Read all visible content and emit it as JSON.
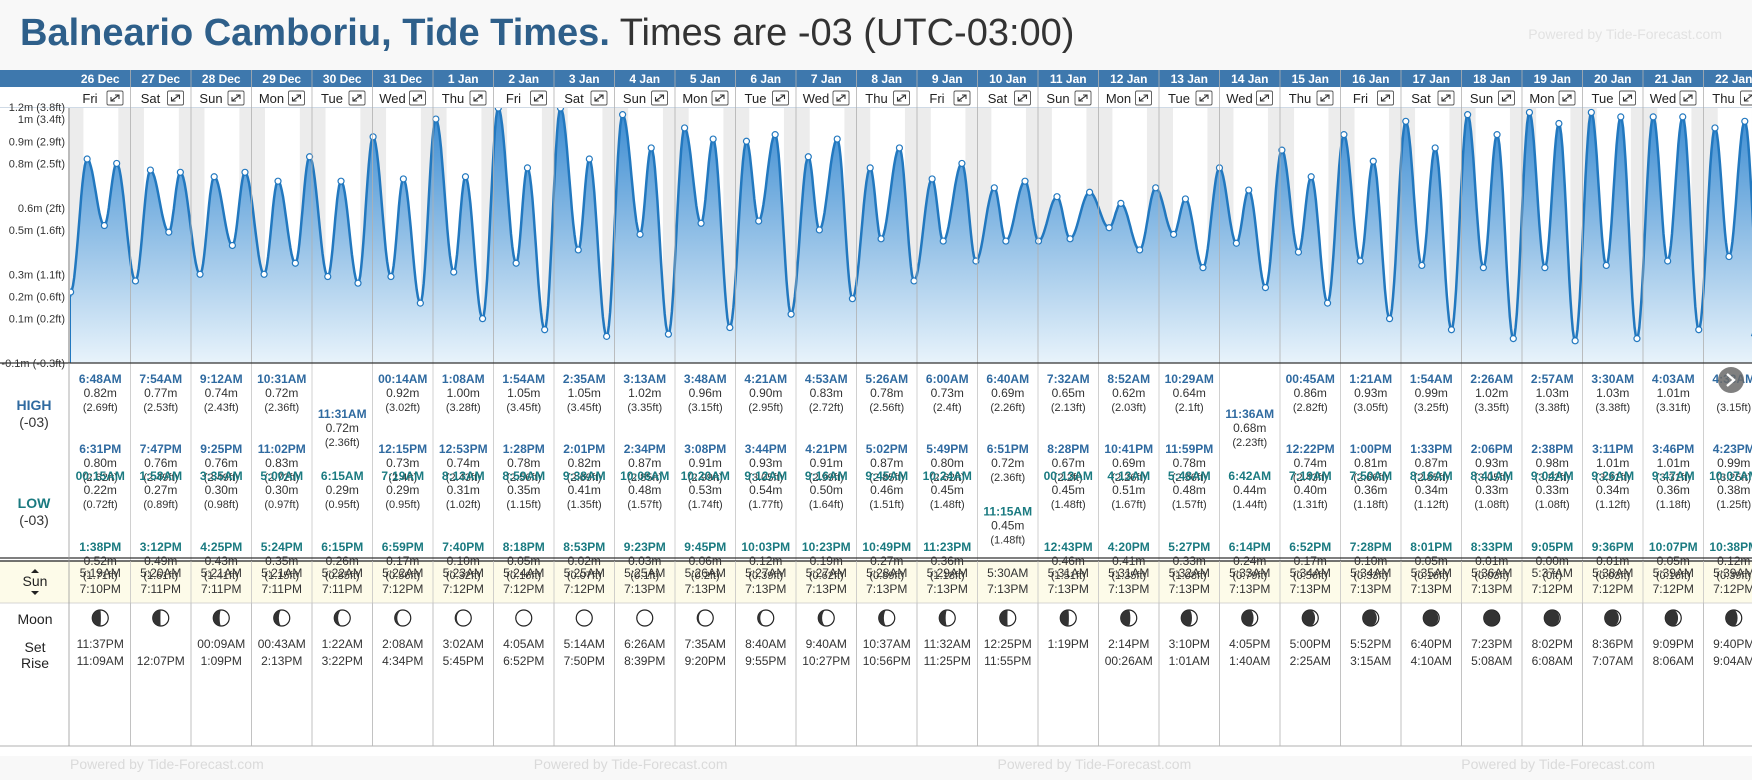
{
  "header": {
    "location": "Balneario Camboriu, Tide Times.",
    "timezone_note": "Times are -03 (UTC-03:00)",
    "powered_by": "Powered by Tide-Forecast.com"
  },
  "footer": {
    "powered_by": "Powered by Tide-Forecast.com"
  },
  "row_labels": {
    "high": "HIGH",
    "high_tz": "(-03)",
    "low": "LOW",
    "low_tz": "(-03)",
    "sun": "Sun",
    "moon": "Moon",
    "set": "Set",
    "rise": "Rise"
  },
  "colors": {
    "header_bar": "#3e78ad",
    "tide_line": "#2278bf",
    "tide_fill_top": "#3a8bd1",
    "tide_fill_bottom": "#e8f3fb",
    "high_time": "#2f6aa0",
    "low_time": "#1a7a80",
    "sun_row": "#fdfbe9"
  },
  "chart_data": {
    "type": "area",
    "title": "Balneario Camboriu, Tide Times.",
    "ylim": [
      -0.1,
      1.05
    ],
    "y_ticks": [
      {
        "v": 1.0,
        "label": "1m (3.4ft)"
      },
      {
        "v": 0.9,
        "label": "0.9m (2.9ft)"
      },
      {
        "v": 0.8,
        "label": "0.8m (2.5ft)"
      },
      {
        "v": 0.6,
        "label": "0.6m (2ft)"
      },
      {
        "v": 0.5,
        "label": "0.5m (1.6ft)"
      },
      {
        "v": 0.3,
        "label": "0.3m (1.1ft)"
      },
      {
        "v": 0.2,
        "label": "0.2m (0.6ft)"
      },
      {
        "v": 0.1,
        "label": "0.1m (0.2ft)"
      },
      {
        "v": -0.1,
        "label": "-0.1m (-0.3ft)"
      }
    ],
    "y_partial_label": "1.2m (3.8ft)",
    "start_value": 0.2,
    "days": [
      {
        "date": "26 Dec",
        "dow": "Fri",
        "high": [
          [
            "6:48AM",
            "0.82m",
            "(2.69ft)"
          ],
          [
            "6:31PM",
            "0.80m",
            "(2.62ft)"
          ]
        ],
        "low": [
          [
            "00:15AM",
            "0.22m",
            "(0.72ft)"
          ],
          [
            "1:38PM",
            "0.52m",
            "(1.71ft)"
          ]
        ],
        "sunrise": "5:19AM",
        "sunset": "7:10PM",
        "moonset": "11:37PM",
        "moonrise": "11:09AM",
        "moon_phase": 0.46
      },
      {
        "date": "27 Dec",
        "dow": "Sat",
        "high": [
          [
            "7:54AM",
            "0.77m",
            "(2.53ft)"
          ],
          [
            "7:47PM",
            "0.76m",
            "(2.49ft)"
          ]
        ],
        "low": [
          [
            "1:58AM",
            "0.27m",
            "(0.89ft)"
          ],
          [
            "3:12PM",
            "0.49m",
            "(1.61ft)"
          ]
        ],
        "sunrise": "5:20AM",
        "sunset": "7:11PM",
        "moonset": "",
        "moonrise": "12:07PM",
        "moon_phase": 0.52
      },
      {
        "date": "28 Dec",
        "dow": "Sun",
        "high": [
          [
            "9:12AM",
            "0.74m",
            "(2.43ft)"
          ],
          [
            "9:25PM",
            "0.76m",
            "(2.49ft)"
          ]
        ],
        "low": [
          [
            "3:35AM",
            "0.30m",
            "(0.98ft)"
          ],
          [
            "4:25PM",
            "0.43m",
            "(1.41ft)"
          ]
        ],
        "sunrise": "5:21AM",
        "sunset": "7:11PM",
        "moonset": "00:09AM",
        "moonrise": "1:09PM",
        "moon_phase": 0.6
      },
      {
        "date": "29 Dec",
        "dow": "Mon",
        "high": [
          [
            "10:31AM",
            "0.72m",
            "(2.36ft)"
          ],
          [
            "11:02PM",
            "0.83m",
            "(2.72ft)"
          ]
        ],
        "low": [
          [
            "5:00AM",
            "0.30m",
            "(0.97ft)"
          ],
          [
            "5:24PM",
            "0.35m",
            "(1.15ft)"
          ]
        ],
        "sunrise": "5:21AM",
        "sunset": "7:11PM",
        "moonset": "00:43AM",
        "moonrise": "2:13PM",
        "moon_phase": 0.68
      },
      {
        "date": "30 Dec",
        "dow": "Tue",
        "high": [
          [
            "11:31AM",
            "0.72m",
            "(2.36ft)"
          ]
        ],
        "low": [
          [
            "6:15AM",
            "0.29m",
            "(0.95ft)"
          ],
          [
            "6:15PM",
            "0.26m",
            "(0.85ft)"
          ]
        ],
        "sunrise": "5:22AM",
        "sunset": "7:11PM",
        "moonset": "1:22AM",
        "moonrise": "3:22PM",
        "moon_phase": 0.76
      },
      {
        "date": "31 Dec",
        "dow": "Wed",
        "high": [
          [
            "00:14AM",
            "0.92m",
            "(3.02ft)"
          ],
          [
            "12:15PM",
            "0.73m",
            "(2.4ft)"
          ]
        ],
        "low": [
          [
            "7:19AM",
            "0.29m",
            "(0.95ft)"
          ],
          [
            "6:59PM",
            "0.17m",
            "(0.56ft)"
          ]
        ],
        "sunrise": "5:22AM",
        "sunset": "7:12PM",
        "moonset": "2:08AM",
        "moonrise": "4:34PM",
        "moon_phase": 0.84
      },
      {
        "date": "1 Jan",
        "dow": "Thu",
        "high": [
          [
            "1:08AM",
            "1.00m",
            "(3.28ft)"
          ],
          [
            "12:53PM",
            "0.74m",
            "(2.43ft)"
          ]
        ],
        "low": [
          [
            "8:13AM",
            "0.31m",
            "(1.02ft)"
          ],
          [
            "7:40PM",
            "0.10m",
            "(0.32ft)"
          ]
        ],
        "sunrise": "5:23AM",
        "sunset": "7:12PM",
        "moonset": "3:02AM",
        "moonrise": "5:45PM",
        "moon_phase": 0.9
      },
      {
        "date": "2 Jan",
        "dow": "Fri",
        "high": [
          [
            "1:54AM",
            "1.05m",
            "(3.45ft)"
          ],
          [
            "1:28PM",
            "0.78m",
            "(2.56ft)"
          ]
        ],
        "low": [
          [
            "8:59AM",
            "0.35m",
            "(1.15ft)"
          ],
          [
            "8:18PM",
            "0.05m",
            "(0.16ft)"
          ]
        ],
        "sunrise": "5:24AM",
        "sunset": "7:12PM",
        "moonset": "4:05AM",
        "moonrise": "6:52PM",
        "moon_phase": 0.96
      },
      {
        "date": "3 Jan",
        "dow": "Sat",
        "high": [
          [
            "2:35AM",
            "1.05m",
            "(3.45ft)"
          ],
          [
            "2:01PM",
            "0.82m",
            "(2.69ft)"
          ]
        ],
        "low": [
          [
            "9:38AM",
            "0.41m",
            "(1.35ft)"
          ],
          [
            "8:53PM",
            "0.02m",
            "(0.07ft)"
          ]
        ],
        "sunrise": "5:25AM",
        "sunset": "7:12PM",
        "moonset": "5:14AM",
        "moonrise": "7:50PM",
        "moon_phase": 1.0
      },
      {
        "date": "4 Jan",
        "dow": "Sun",
        "high": [
          [
            "3:13AM",
            "1.02m",
            "(3.35ft)"
          ],
          [
            "2:34PM",
            "0.87m",
            "(2.85ft)"
          ]
        ],
        "low": [
          [
            "10:08AM",
            "0.48m",
            "(1.57ft)"
          ],
          [
            "9:23PM",
            "0.03m",
            "(0.1ft)"
          ]
        ],
        "sunrise": "5:25AM",
        "sunset": "7:13PM",
        "moonset": "6:26AM",
        "moonrise": "8:39PM",
        "moon_phase": 0.96
      },
      {
        "date": "5 Jan",
        "dow": "Mon",
        "high": [
          [
            "3:48AM",
            "0.96m",
            "(3.15ft)"
          ],
          [
            "3:08PM",
            "0.91m",
            "(2.99ft)"
          ]
        ],
        "low": [
          [
            "10:20AM",
            "0.53m",
            "(1.74ft)"
          ],
          [
            "9:45PM",
            "0.06m",
            "(0.2ft)"
          ]
        ],
        "sunrise": "5:26AM",
        "sunset": "7:13PM",
        "moonset": "7:35AM",
        "moonrise": "9:20PM",
        "moon_phase": 0.9
      },
      {
        "date": "6 Jan",
        "dow": "Tue",
        "high": [
          [
            "4:21AM",
            "0.90m",
            "(2.95ft)"
          ],
          [
            "3:44PM",
            "0.93m",
            "(3.05ft)"
          ]
        ],
        "low": [
          [
            "9:12AM",
            "0.54m",
            "(1.77ft)"
          ],
          [
            "10:03PM",
            "0.12m",
            "(0.39ft)"
          ]
        ],
        "sunrise": "5:27AM",
        "sunset": "7:13PM",
        "moonset": "8:40AM",
        "moonrise": "9:55PM",
        "moon_phase": 0.84
      },
      {
        "date": "7 Jan",
        "dow": "Wed",
        "high": [
          [
            "4:53AM",
            "0.83m",
            "(2.72ft)"
          ],
          [
            "4:21PM",
            "0.91m",
            "(2.99ft)"
          ]
        ],
        "low": [
          [
            "9:16AM",
            "0.50m",
            "(1.64ft)"
          ],
          [
            "10:23PM",
            "0.19m",
            "(0.62ft)"
          ]
        ],
        "sunrise": "5:27AM",
        "sunset": "7:13PM",
        "moonset": "9:40AM",
        "moonrise": "10:27PM",
        "moon_phase": 0.76
      },
      {
        "date": "8 Jan",
        "dow": "Thu",
        "high": [
          [
            "5:26AM",
            "0.78m",
            "(2.56ft)"
          ],
          [
            "5:02PM",
            "0.87m",
            "(2.85ft)"
          ]
        ],
        "low": [
          [
            "9:45AM",
            "0.46m",
            "(1.51ft)"
          ],
          [
            "10:49PM",
            "0.27m",
            "(0.89ft)"
          ]
        ],
        "sunrise": "5:28AM",
        "sunset": "7:13PM",
        "moonset": "10:37AM",
        "moonrise": "10:56PM",
        "moon_phase": 0.68
      },
      {
        "date": "9 Jan",
        "dow": "Fri",
        "high": [
          [
            "6:00AM",
            "0.73m",
            "(2.4ft)"
          ],
          [
            "5:49PM",
            "0.80m",
            "(2.62ft)"
          ]
        ],
        "low": [
          [
            "10:24AM",
            "0.45m",
            "(1.48ft)"
          ],
          [
            "11:23PM",
            "0.36m",
            "(1.18ft)"
          ]
        ],
        "sunrise": "5:29AM",
        "sunset": "7:13PM",
        "moonset": "11:32AM",
        "moonrise": "11:25PM",
        "moon_phase": 0.6
      },
      {
        "date": "10 Jan",
        "dow": "Sat",
        "high": [
          [
            "6:40AM",
            "0.69m",
            "(2.26ft)"
          ],
          [
            "6:51PM",
            "0.72m",
            "(2.36ft)"
          ]
        ],
        "low": [
          [
            "11:15AM",
            "0.45m",
            "(1.48ft)"
          ]
        ],
        "sunrise": "5:30AM",
        "sunset": "7:13PM",
        "moonset": "12:25PM",
        "moonrise": "11:55PM",
        "moon_phase": 0.52
      },
      {
        "date": "11 Jan",
        "dow": "Sun",
        "high": [
          [
            "7:32AM",
            "0.65m",
            "(2.13ft)"
          ],
          [
            "8:28PM",
            "0.67m",
            "(2.2ft)"
          ]
        ],
        "low": [
          [
            "00:13AM",
            "0.45m",
            "(1.48ft)"
          ],
          [
            "12:43PM",
            "0.46m",
            "(1.51ft)"
          ]
        ],
        "sunrise": "5:31AM",
        "sunset": "7:13PM",
        "moonset": "1:19PM",
        "moonrise": "",
        "moon_phase": 0.46
      },
      {
        "date": "12 Jan",
        "dow": "Mon",
        "high": [
          [
            "8:52AM",
            "0.62m",
            "(2.03ft)"
          ],
          [
            "10:41PM",
            "0.69m",
            "(2.26ft)"
          ]
        ],
        "low": [
          [
            "4:13AM",
            "0.51m",
            "(1.67ft)"
          ],
          [
            "4:20PM",
            "0.41m",
            "(1.35ft)"
          ]
        ],
        "sunrise": "5:31AM",
        "sunset": "7:13PM",
        "moonset": "2:14PM",
        "moonrise": "00:26AM",
        "moon_phase": 0.4
      },
      {
        "date": "13 Jan",
        "dow": "Tue",
        "high": [
          [
            "10:29AM",
            "0.64m",
            "(2.1ft)"
          ],
          [
            "11:59PM",
            "0.78m",
            "(2.56ft)"
          ]
        ],
        "low": [
          [
            "5:48AM",
            "0.48m",
            "(1.57ft)"
          ],
          [
            "5:27PM",
            "0.33m",
            "(1.08ft)"
          ]
        ],
        "sunrise": "5:32AM",
        "sunset": "7:13PM",
        "moonset": "3:10PM",
        "moonrise": "1:01AM",
        "moon_phase": 0.33
      },
      {
        "date": "14 Jan",
        "dow": "Wed",
        "high": [
          [
            "11:36AM",
            "0.68m",
            "(2.23ft)"
          ]
        ],
        "low": [
          [
            "6:42AM",
            "0.44m",
            "(1.44ft)"
          ],
          [
            "6:14PM",
            "0.24m",
            "(0.79ft)"
          ]
        ],
        "sunrise": "5:33AM",
        "sunset": "7:13PM",
        "moonset": "4:05PM",
        "moonrise": "1:40AM",
        "moon_phase": 0.26
      },
      {
        "date": "15 Jan",
        "dow": "Thu",
        "high": [
          [
            "00:45AM",
            "0.86m",
            "(2.82ft)"
          ],
          [
            "12:22PM",
            "0.74m",
            "(2.43ft)"
          ]
        ],
        "low": [
          [
            "7:19AM",
            "0.40m",
            "(1.31ft)"
          ],
          [
            "6:52PM",
            "0.17m",
            "(0.56ft)"
          ]
        ],
        "sunrise": "5:34AM",
        "sunset": "7:13PM",
        "moonset": "5:00PM",
        "moonrise": "2:25AM",
        "moon_phase": 0.2
      },
      {
        "date": "16 Jan",
        "dow": "Fri",
        "high": [
          [
            "1:21AM",
            "0.93m",
            "(3.05ft)"
          ],
          [
            "1:00PM",
            "0.81m",
            "(2.66ft)"
          ]
        ],
        "low": [
          [
            "7:50AM",
            "0.36m",
            "(1.18ft)"
          ],
          [
            "7:28PM",
            "0.10m",
            "(0.33ft)"
          ]
        ],
        "sunrise": "5:34AM",
        "sunset": "7:13PM",
        "moonset": "5:52PM",
        "moonrise": "3:15AM",
        "moon_phase": 0.12
      },
      {
        "date": "17 Jan",
        "dow": "Sat",
        "high": [
          [
            "1:54AM",
            "0.99m",
            "(3.25ft)"
          ],
          [
            "1:33PM",
            "0.87m",
            "(2.85ft)"
          ]
        ],
        "low": [
          [
            "8:16AM",
            "0.34m",
            "(1.12ft)"
          ],
          [
            "8:01PM",
            "0.05m",
            "(0.16ft)"
          ]
        ],
        "sunrise": "5:35AM",
        "sunset": "7:13PM",
        "moonset": "6:40PM",
        "moonrise": "4:10AM",
        "moon_phase": 0.06
      },
      {
        "date": "18 Jan",
        "dow": "Sun",
        "high": [
          [
            "2:26AM",
            "1.02m",
            "(3.35ft)"
          ],
          [
            "2:06PM",
            "0.93m",
            "(3.05ft)"
          ]
        ],
        "low": [
          [
            "8:41AM",
            "0.33m",
            "(1.08ft)"
          ],
          [
            "8:33PM",
            "0.01m",
            "(0.03ft)"
          ]
        ],
        "sunrise": "5:36AM",
        "sunset": "7:13PM",
        "moonset": "7:23PM",
        "moonrise": "5:08AM",
        "moon_phase": 0.02
      },
      {
        "date": "19 Jan",
        "dow": "Mon",
        "high": [
          [
            "2:57AM",
            "1.03m",
            "(3.38ft)"
          ],
          [
            "2:38PM",
            "0.98m",
            "(3.22ft)"
          ]
        ],
        "low": [
          [
            "9:04AM",
            "0.33m",
            "(1.08ft)"
          ],
          [
            "9:05PM",
            "0.00m",
            "(0ft)"
          ]
        ],
        "sunrise": "5:37AM",
        "sunset": "7:12PM",
        "moonset": "8:02PM",
        "moonrise": "6:08AM",
        "moon_phase": 0.06
      },
      {
        "date": "20 Jan",
        "dow": "Tue",
        "high": [
          [
            "3:30AM",
            "1.03m",
            "(3.38ft)"
          ],
          [
            "3:11PM",
            "1.01m",
            "(3.31ft)"
          ]
        ],
        "low": [
          [
            "9:26AM",
            "0.34m",
            "(1.12ft)"
          ],
          [
            "9:36PM",
            "0.01m",
            "(0.03ft)"
          ]
        ],
        "sunrise": "5:38AM",
        "sunset": "7:12PM",
        "moonset": "8:36PM",
        "moonrise": "7:07AM",
        "moon_phase": 0.12
      },
      {
        "date": "21 Jan",
        "dow": "Wed",
        "high": [
          [
            "4:03AM",
            "1.01m",
            "(3.31ft)"
          ],
          [
            "3:46PM",
            "1.01m",
            "(3.31ft)"
          ]
        ],
        "low": [
          [
            "9:47AM",
            "0.36m",
            "(1.18ft)"
          ],
          [
            "10:07PM",
            "0.05m",
            "(0.16ft)"
          ]
        ],
        "sunrise": "5:39AM",
        "sunset": "7:12PM",
        "moonset": "9:09PM",
        "moonrise": "8:06AM",
        "moon_phase": 0.2
      },
      {
        "date": "22 Jan",
        "dow": "Thu",
        "high": [
          [
            "4:33AM",
            "",
            "(3.15ft)"
          ],
          [
            "4:23PM",
            "0.99m",
            "(3.25ft)"
          ]
        ],
        "low": [
          [
            "10:07AM",
            "0.38m",
            "(1.25ft)"
          ],
          [
            "10:38PM",
            "0.12m",
            "(0.39ft)"
          ]
        ],
        "sunrise": "5:39AM",
        "sunset": "7:12PM",
        "moonset": "9:40PM",
        "moonrise": "9:04AM",
        "moon_phase": 0.26
      }
    ]
  }
}
